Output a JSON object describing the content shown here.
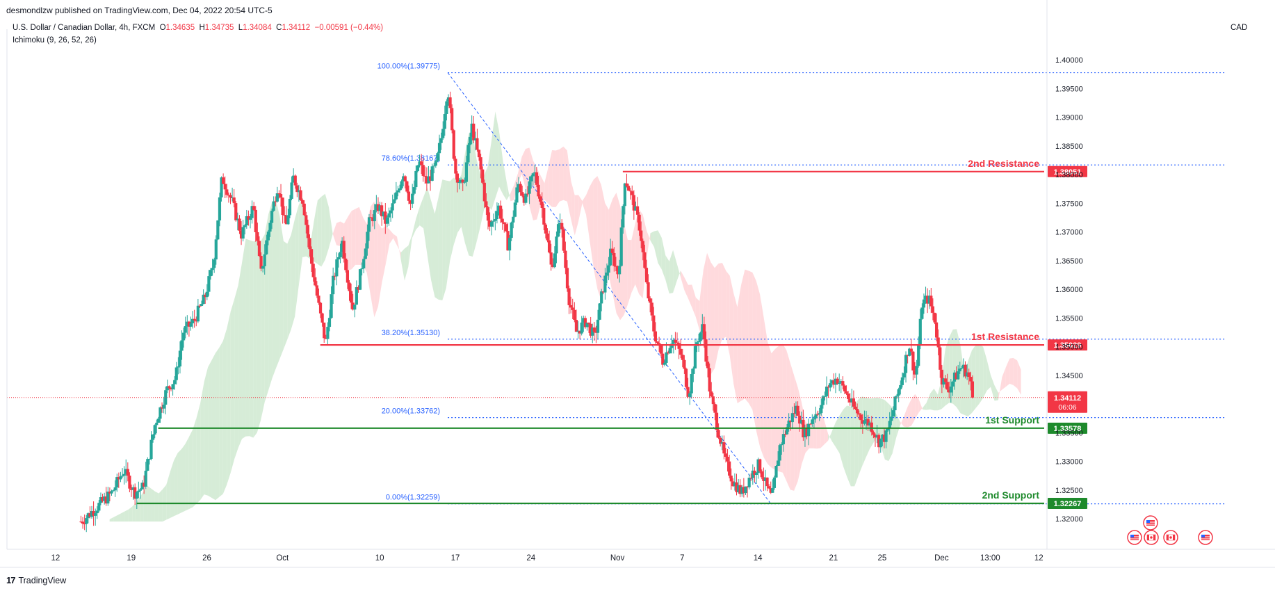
{
  "published": "desmondlzw published on TradingView.com, Dec 04, 2022 20:54 UTC-5",
  "header": {
    "symbol": "U.S. Dollar / Canadian Dollar, 4h, FXCM",
    "open_label": "O",
    "open": "1.34635",
    "high_label": "H",
    "high": "1.34735",
    "low_label": "L",
    "low": "1.34084",
    "close_label": "C",
    "close": "1.34112",
    "change": "−0.00591 (−0.44%)",
    "indicator": "Ichimoku (9, 26, 52, 26)",
    "currency": "CAD"
  },
  "footer": {
    "logo_mark": "17",
    "logo_text": "TradingView"
  },
  "colors": {
    "up": "#26a69a",
    "down": "#f23645",
    "resistance": "#f23645",
    "support": "#1e8a2c",
    "fib": "#2962ff",
    "cloud_bull": "#c8e6c9",
    "cloud_bear": "#ffcdd2"
  },
  "chart_data": {
    "type": "candlestick",
    "y_ticks": [
      "1.40000",
      "1.39500",
      "1.39000",
      "1.38500",
      "1.38000",
      "1.37500",
      "1.37000",
      "1.36500",
      "1.36000",
      "1.35500",
      "1.35000",
      "1.34500",
      "1.34000",
      "1.33500",
      "1.33000",
      "1.32500",
      "1.32000"
    ],
    "x_ticks": [
      {
        "label": "12",
        "t": 12
      },
      {
        "label": "19",
        "t": 19
      },
      {
        "label": "26",
        "t": 26
      },
      {
        "label": "Oct",
        "t": 33
      },
      {
        "label": "10",
        "t": 42
      },
      {
        "label": "17",
        "t": 49
      },
      {
        "label": "24",
        "t": 56
      },
      {
        "label": "Nov",
        "t": 64
      },
      {
        "label": "7",
        "t": 70
      },
      {
        "label": "14",
        "t": 77
      },
      {
        "label": "21",
        "t": 84
      },
      {
        "label": "25",
        "t": 88.5
      },
      {
        "label": "Dec",
        "t": 94
      },
      {
        "label": "13:00",
        "t": 98.5
      },
      {
        "label": "12",
        "t": 103
      }
    ],
    "current_price": "1.34112",
    "countdown": "06:06",
    "levels": [
      {
        "name": "2nd Resistance",
        "value": 1.38051,
        "label": "1.38051",
        "kind": "resistance",
        "start_t": 64.5
      },
      {
        "name": "1st Resistance",
        "value": 1.35029,
        "label": "1.35029",
        "kind": "resistance",
        "start_t": 36.5
      },
      {
        "name": "1st Support",
        "value": 1.33578,
        "label": "1.33578",
        "kind": "support",
        "start_t": 21.5
      },
      {
        "name": "2nd Support",
        "value": 1.32267,
        "label": "1.32267",
        "kind": "support",
        "start_t": 19.5
      }
    ],
    "fibonacci": [
      {
        "label": "100.00%(1.39775)",
        "value": 1.39775
      },
      {
        "label": "78.60%(1.38167)",
        "value": 1.38167
      },
      {
        "label": "38.20%(1.35130)",
        "value": 1.3513
      },
      {
        "label": "20.00%(1.33762)",
        "value": 1.33762
      },
      {
        "label": "0.00%(1.32259)",
        "value": 1.32259
      }
    ],
    "fib_anchor": {
      "high_t": 48.3,
      "high": 1.39775,
      "low_t": 78.2,
      "low": 1.32259
    },
    "price_path": [
      [
        14.4,
        1.3195
      ],
      [
        17.2,
        1.3245
      ],
      [
        18.3,
        1.3285
      ],
      [
        19.3,
        1.3245
      ],
      [
        20.1,
        1.3255
      ],
      [
        21.2,
        1.3365
      ],
      [
        22.3,
        1.3425
      ],
      [
        23.1,
        1.3445
      ],
      [
        23.8,
        1.3525
      ],
      [
        24.8,
        1.3545
      ],
      [
        25.8,
        1.3585
      ],
      [
        26.6,
        1.3645
      ],
      [
        27.4,
        1.3795
      ],
      [
        28.3,
        1.3755
      ],
      [
        29.2,
        1.3695
      ],
      [
        30.3,
        1.3745
      ],
      [
        31.0,
        1.3625
      ],
      [
        31.9,
        1.3725
      ],
      [
        32.6,
        1.3785
      ],
      [
        33.3,
        1.3705
      ],
      [
        34.0,
        1.3795
      ],
      [
        34.9,
        1.3755
      ],
      [
        35.6,
        1.3655
      ],
      [
        36.4,
        1.3565
      ],
      [
        37.0,
        1.3505
      ],
      [
        37.7,
        1.3615
      ],
      [
        38.5,
        1.3685
      ],
      [
        39.5,
        1.3565
      ],
      [
        40.2,
        1.3625
      ],
      [
        41.0,
        1.3715
      ],
      [
        41.9,
        1.3745
      ],
      [
        42.6,
        1.3715
      ],
      [
        43.4,
        1.3755
      ],
      [
        44.2,
        1.3805
      ],
      [
        44.9,
        1.3745
      ],
      [
        45.6,
        1.3825
      ],
      [
        46.3,
        1.3785
      ],
      [
        47.2,
        1.3815
      ],
      [
        47.7,
        1.3865
      ],
      [
        48.3,
        1.3955
      ],
      [
        49.0,
        1.3805
      ],
      [
        49.7,
        1.3775
      ],
      [
        50.5,
        1.3885
      ],
      [
        51.3,
        1.3815
      ],
      [
        52.1,
        1.3705
      ],
      [
        53.0,
        1.3745
      ],
      [
        53.9,
        1.3675
      ],
      [
        54.8,
        1.3785
      ],
      [
        55.5,
        1.3755
      ],
      [
        56.3,
        1.3805
      ],
      [
        57.1,
        1.3735
      ],
      [
        57.9,
        1.3635
      ],
      [
        58.7,
        1.3725
      ],
      [
        59.5,
        1.3585
      ],
      [
        60.2,
        1.3525
      ],
      [
        61.1,
        1.3545
      ],
      [
        61.9,
        1.3515
      ],
      [
        62.6,
        1.3595
      ],
      [
        63.4,
        1.3665
      ],
      [
        64.1,
        1.3625
      ],
      [
        64.7,
        1.3795
      ],
      [
        65.4,
        1.3755
      ],
      [
        66.1,
        1.3705
      ],
      [
        66.7,
        1.3605
      ],
      [
        67.4,
        1.3525
      ],
      [
        68.2,
        1.3475
      ],
      [
        69.1,
        1.3515
      ],
      [
        69.9,
        1.3485
      ],
      [
        70.6,
        1.3415
      ],
      [
        71.3,
        1.3505
      ],
      [
        71.9,
        1.3535
      ],
      [
        72.6,
        1.3415
      ],
      [
        73.2,
        1.3365
      ],
      [
        73.9,
        1.3305
      ],
      [
        74.7,
        1.3265
      ],
      [
        75.5,
        1.3245
      ],
      [
        76.3,
        1.3275
      ],
      [
        77.1,
        1.3295
      ],
      [
        77.8,
        1.3255
      ],
      [
        78.3,
        1.3235
      ],
      [
        79.0,
        1.3325
      ],
      [
        79.8,
        1.3365
      ],
      [
        80.6,
        1.3395
      ],
      [
        81.3,
        1.3345
      ],
      [
        82.0,
        1.3375
      ],
      [
        82.8,
        1.3395
      ],
      [
        83.6,
        1.3435
      ],
      [
        84.3,
        1.3445
      ],
      [
        85.0,
        1.3425
      ],
      [
        85.8,
        1.3395
      ],
      [
        86.6,
        1.3375
      ],
      [
        87.4,
        1.3365
      ],
      [
        88.2,
        1.3335
      ],
      [
        88.9,
        1.3345
      ],
      [
        89.6,
        1.3395
      ],
      [
        90.3,
        1.3445
      ],
      [
        91.0,
        1.3505
      ],
      [
        91.6,
        1.3445
      ],
      [
        92.2,
        1.3575
      ],
      [
        92.8,
        1.3585
      ],
      [
        93.4,
        1.3545
      ],
      [
        94.0,
        1.3445
      ],
      [
        94.6,
        1.3425
      ],
      [
        95.2,
        1.3445
      ],
      [
        95.8,
        1.3465
      ],
      [
        96.4,
        1.3455
      ],
      [
        97.0,
        1.3411
      ]
    ],
    "events": [
      "us-flag",
      "us-flag",
      "ca-flag",
      "ca-flag",
      "us-flag"
    ]
  }
}
